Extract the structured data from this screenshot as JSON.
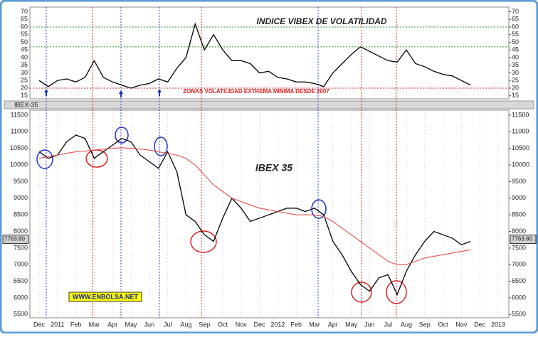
{
  "chart_data": [
    {
      "type": "line",
      "title": "INDICE VIBEX DE VOLATILIDAD",
      "annotation": "ZONAS VOLATILIDAD EXTREMA MINIMA DESDE 2007",
      "ylim": [
        13,
        73
      ],
      "yticks": [
        15,
        20,
        25,
        30,
        35,
        40,
        45,
        50,
        55,
        60,
        65,
        70
      ],
      "reference_lines": [
        {
          "value": 60,
          "color": "#2a9a2a"
        },
        {
          "value": 47,
          "color": "#2a9a2a"
        },
        {
          "value": 20,
          "color": "#e02020"
        }
      ],
      "series": [
        {
          "color": "#000000",
          "values": [
            25,
            21,
            25,
            26,
            24,
            27,
            38,
            27,
            24,
            22,
            20,
            22,
            23,
            26,
            24,
            33,
            40,
            62,
            45,
            55,
            45,
            38,
            38,
            36,
            30,
            31,
            27,
            26,
            24,
            24,
            23,
            21,
            30,
            36,
            42,
            47,
            44,
            41,
            38,
            37,
            45,
            36,
            34,
            31,
            29,
            28,
            25,
            22,
            null,
            null,
            null,
            null
          ]
        }
      ]
    },
    {
      "type": "line",
      "title": "IBEX 35",
      "window_title": "IBEX-35",
      "watermark": "WWW.ENBOLSA.NET",
      "categories": [
        "Dec",
        null,
        "2011",
        null,
        "Feb",
        null,
        "Mar",
        null,
        "Apr",
        null,
        "May",
        null,
        "Jun",
        null,
        "Jul",
        null,
        "Aug",
        null,
        "Sep",
        null,
        "Oct",
        null,
        "Nov",
        null,
        "Dec",
        null,
        "2012",
        null,
        "Feb",
        null,
        "Mar",
        null,
        "Apr",
        null,
        "May",
        null,
        "Jun",
        null,
        "Jul",
        null,
        "Aug",
        null,
        "Sep",
        null,
        "Oct",
        null,
        "Nov",
        null,
        "Dec",
        null,
        "2013",
        null
      ],
      "ylim": [
        5400,
        11650
      ],
      "yticks": [
        5500,
        6000,
        6500,
        7000,
        7500,
        8000,
        8500,
        9000,
        9500,
        10000,
        10500,
        11000,
        11500
      ],
      "last_price": {
        "value": 7763.8,
        "label": "7763.80"
      },
      "series": [
        {
          "color": "#000000",
          "values": [
            10400,
            10200,
            10300,
            10700,
            10900,
            10800,
            10200,
            10400,
            10600,
            10800,
            10700,
            10300,
            10100,
            9900,
            10400,
            9800,
            8500,
            8300,
            7900,
            7700,
            8400,
            9000,
            8700,
            8300,
            8400,
            8500,
            8600,
            8700,
            8700,
            8600,
            8700,
            8500,
            7700,
            7300,
            6800,
            6400,
            6200,
            6600,
            6700,
            6100,
            6800,
            7300,
            7700,
            8000,
            7900,
            7800,
            7600,
            7700,
            null,
            null,
            null,
            null
          ]
        },
        {
          "color": "#e05050",
          "values": [
            10200,
            10250,
            10300,
            10350,
            10400,
            10420,
            10450,
            10480,
            10500,
            10520,
            10500,
            10480,
            10450,
            10400,
            10350,
            10300,
            10200,
            10000,
            9700,
            9400,
            9200,
            9000,
            8900,
            8800,
            8700,
            8650,
            8600,
            8550,
            8500,
            8500,
            8500,
            8450,
            8300,
            8100,
            7900,
            7700,
            7500,
            7300,
            7100,
            7000,
            7000,
            7100,
            7200,
            7250,
            7300,
            7350,
            7400,
            7450,
            null,
            null,
            null,
            null
          ]
        }
      ]
    }
  ]
}
